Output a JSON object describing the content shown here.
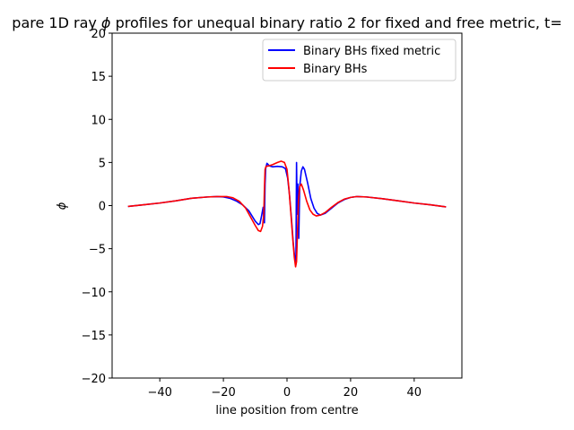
{
  "chart_data": {
    "type": "line",
    "title_prefix": "pare 1D ray ",
    "title_symbol": "ϕ",
    "title_suffix": " profiles for unequal binary ratio 2 for fixed and free metric, t=",
    "xlabel": "line position from centre",
    "ylabel": "ϕ",
    "xlim": [
      -55,
      55
    ],
    "ylim": [
      -20,
      20
    ],
    "xticks": [
      -40,
      -20,
      0,
      20,
      40
    ],
    "yticks": [
      -20,
      -15,
      -10,
      -5,
      0,
      5,
      10,
      15,
      20
    ],
    "grid": false,
    "legend_position": "top-right",
    "series": [
      {
        "name": "Binary BHs fixed metric",
        "color": "#0000ff",
        "points": [
          [
            -50,
            -0.1
          ],
          [
            -45,
            0.1
          ],
          [
            -40,
            0.3
          ],
          [
            -35,
            0.55
          ],
          [
            -30,
            0.85
          ],
          [
            -25,
            1.0
          ],
          [
            -22,
            1.05
          ],
          [
            -20,
            1.0
          ],
          [
            -18,
            0.85
          ],
          [
            -16,
            0.55
          ],
          [
            -14,
            0.1
          ],
          [
            -12,
            -0.6
          ],
          [
            -11,
            -1.2
          ],
          [
            -10,
            -1.8
          ],
          [
            -9,
            -2.2
          ],
          [
            -8.5,
            -2.1
          ],
          [
            -8,
            -1.2
          ],
          [
            -7.5,
            -0.2
          ],
          [
            -7.3,
            -1.5
          ],
          [
            -7.1,
            -2.0
          ],
          [
            -6.9,
            2.5
          ],
          [
            -6.7,
            4.3
          ],
          [
            -6.3,
            4.9
          ],
          [
            -5.5,
            4.6
          ],
          [
            -4.5,
            4.5
          ],
          [
            -3,
            4.55
          ],
          [
            -1.5,
            4.5
          ],
          [
            -0.5,
            4.3
          ],
          [
            0.2,
            3.2
          ],
          [
            0.8,
            1.2
          ],
          [
            1.4,
            -1.5
          ],
          [
            2.0,
            -4.5
          ],
          [
            2.5,
            -6.3
          ],
          [
            2.8,
            -6.8
          ],
          [
            3.0,
            5.0
          ],
          [
            3.2,
            -1.0
          ],
          [
            3.4,
            2.5
          ],
          [
            3.7,
            -3.8
          ],
          [
            4.0,
            2.2
          ],
          [
            4.5,
            4.0
          ],
          [
            5.0,
            4.5
          ],
          [
            5.5,
            4.2
          ],
          [
            6.5,
            2.6
          ],
          [
            7.5,
            0.8
          ],
          [
            8.5,
            -0.3
          ],
          [
            9.5,
            -0.9
          ],
          [
            10.5,
            -1.1
          ],
          [
            12,
            -0.9
          ],
          [
            14,
            -0.3
          ],
          [
            16,
            0.3
          ],
          [
            18,
            0.7
          ],
          [
            20,
            0.95
          ],
          [
            22,
            1.05
          ],
          [
            25,
            1.0
          ],
          [
            30,
            0.8
          ],
          [
            35,
            0.55
          ],
          [
            40,
            0.3
          ],
          [
            45,
            0.1
          ],
          [
            50,
            -0.15
          ]
        ]
      },
      {
        "name": "Binary BHs",
        "color": "#ff0000",
        "points": [
          [
            -50,
            -0.1
          ],
          [
            -45,
            0.1
          ],
          [
            -40,
            0.3
          ],
          [
            -35,
            0.55
          ],
          [
            -30,
            0.85
          ],
          [
            -25,
            1.0
          ],
          [
            -22,
            1.05
          ],
          [
            -19,
            1.05
          ],
          [
            -17,
            0.9
          ],
          [
            -15,
            0.5
          ],
          [
            -13,
            -0.3
          ],
          [
            -11.5,
            -1.3
          ],
          [
            -10,
            -2.3
          ],
          [
            -9,
            -2.9
          ],
          [
            -8.3,
            -3.0
          ],
          [
            -7.7,
            -2.4
          ],
          [
            -7.3,
            -1.0
          ],
          [
            -7.1,
            2.0
          ],
          [
            -6.9,
            4.2
          ],
          [
            -6.6,
            4.55
          ],
          [
            -5.8,
            4.6
          ],
          [
            -4.5,
            4.75
          ],
          [
            -3,
            5.0
          ],
          [
            -1.8,
            5.15
          ],
          [
            -0.8,
            5.0
          ],
          [
            0,
            4.2
          ],
          [
            0.6,
            2.0
          ],
          [
            1.2,
            -0.8
          ],
          [
            1.8,
            -3.8
          ],
          [
            2.3,
            -6.0
          ],
          [
            2.7,
            -7.1
          ],
          [
            3.0,
            -6.5
          ],
          [
            3.3,
            -3.0
          ],
          [
            3.6,
            0.5
          ],
          [
            4.0,
            2.2
          ],
          [
            4.5,
            2.5
          ],
          [
            5.2,
            1.8
          ],
          [
            6.2,
            0.5
          ],
          [
            7.2,
            -0.5
          ],
          [
            8.2,
            -1.0
          ],
          [
            9.2,
            -1.2
          ],
          [
            10.5,
            -1.1
          ],
          [
            12,
            -0.8
          ],
          [
            14,
            -0.2
          ],
          [
            16,
            0.35
          ],
          [
            18,
            0.75
          ],
          [
            20,
            0.95
          ],
          [
            22,
            1.05
          ],
          [
            25,
            1.0
          ],
          [
            30,
            0.8
          ],
          [
            35,
            0.55
          ],
          [
            40,
            0.3
          ],
          [
            45,
            0.1
          ],
          [
            50,
            -0.15
          ]
        ]
      }
    ]
  }
}
